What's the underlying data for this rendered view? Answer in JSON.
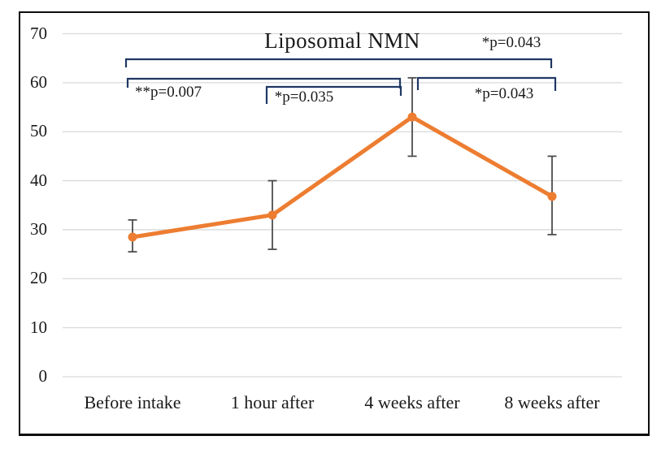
{
  "chart_data": {
    "type": "line",
    "title": "Liposomal NMN",
    "categories": [
      "Before intake",
      "1 hour after",
      "4 weeks after",
      "8 weeks after"
    ],
    "series": [
      {
        "name": "Liposomal NMN",
        "values": [
          28.5,
          33,
          53,
          36.8
        ],
        "error_upper": [
          32,
          40,
          61,
          45
        ],
        "error_lower": [
          25.5,
          26,
          45,
          29
        ]
      }
    ],
    "ylim": [
      0,
      70
    ],
    "ytick_labels": [
      "70",
      "60",
      "50",
      "40",
      "30",
      "20",
      "10",
      "0"
    ],
    "xlabel": "",
    "ylabel": "",
    "grid": "horizontal",
    "legend": "none",
    "comparisons": [
      {
        "between": [
          "Before intake",
          "8 weeks after"
        ],
        "label": "*p=0.043"
      },
      {
        "between": [
          "Before intake",
          "4 weeks after"
        ],
        "label": "**p=0.007"
      },
      {
        "between": [
          "1 hour after",
          "4 weeks after"
        ],
        "label": "*p=0.035"
      },
      {
        "between": [
          "4 weeks after",
          "8 weeks after"
        ],
        "label": "*p=0.043"
      }
    ],
    "colors": {
      "line": "#ED7D31",
      "marker": "#ED7D31",
      "error_bar": "#4d4d4d",
      "bracket": "#1F3864",
      "gridline": "#D9D9D9",
      "text": "#1a1a1a",
      "border": "#0d0d0d"
    }
  }
}
